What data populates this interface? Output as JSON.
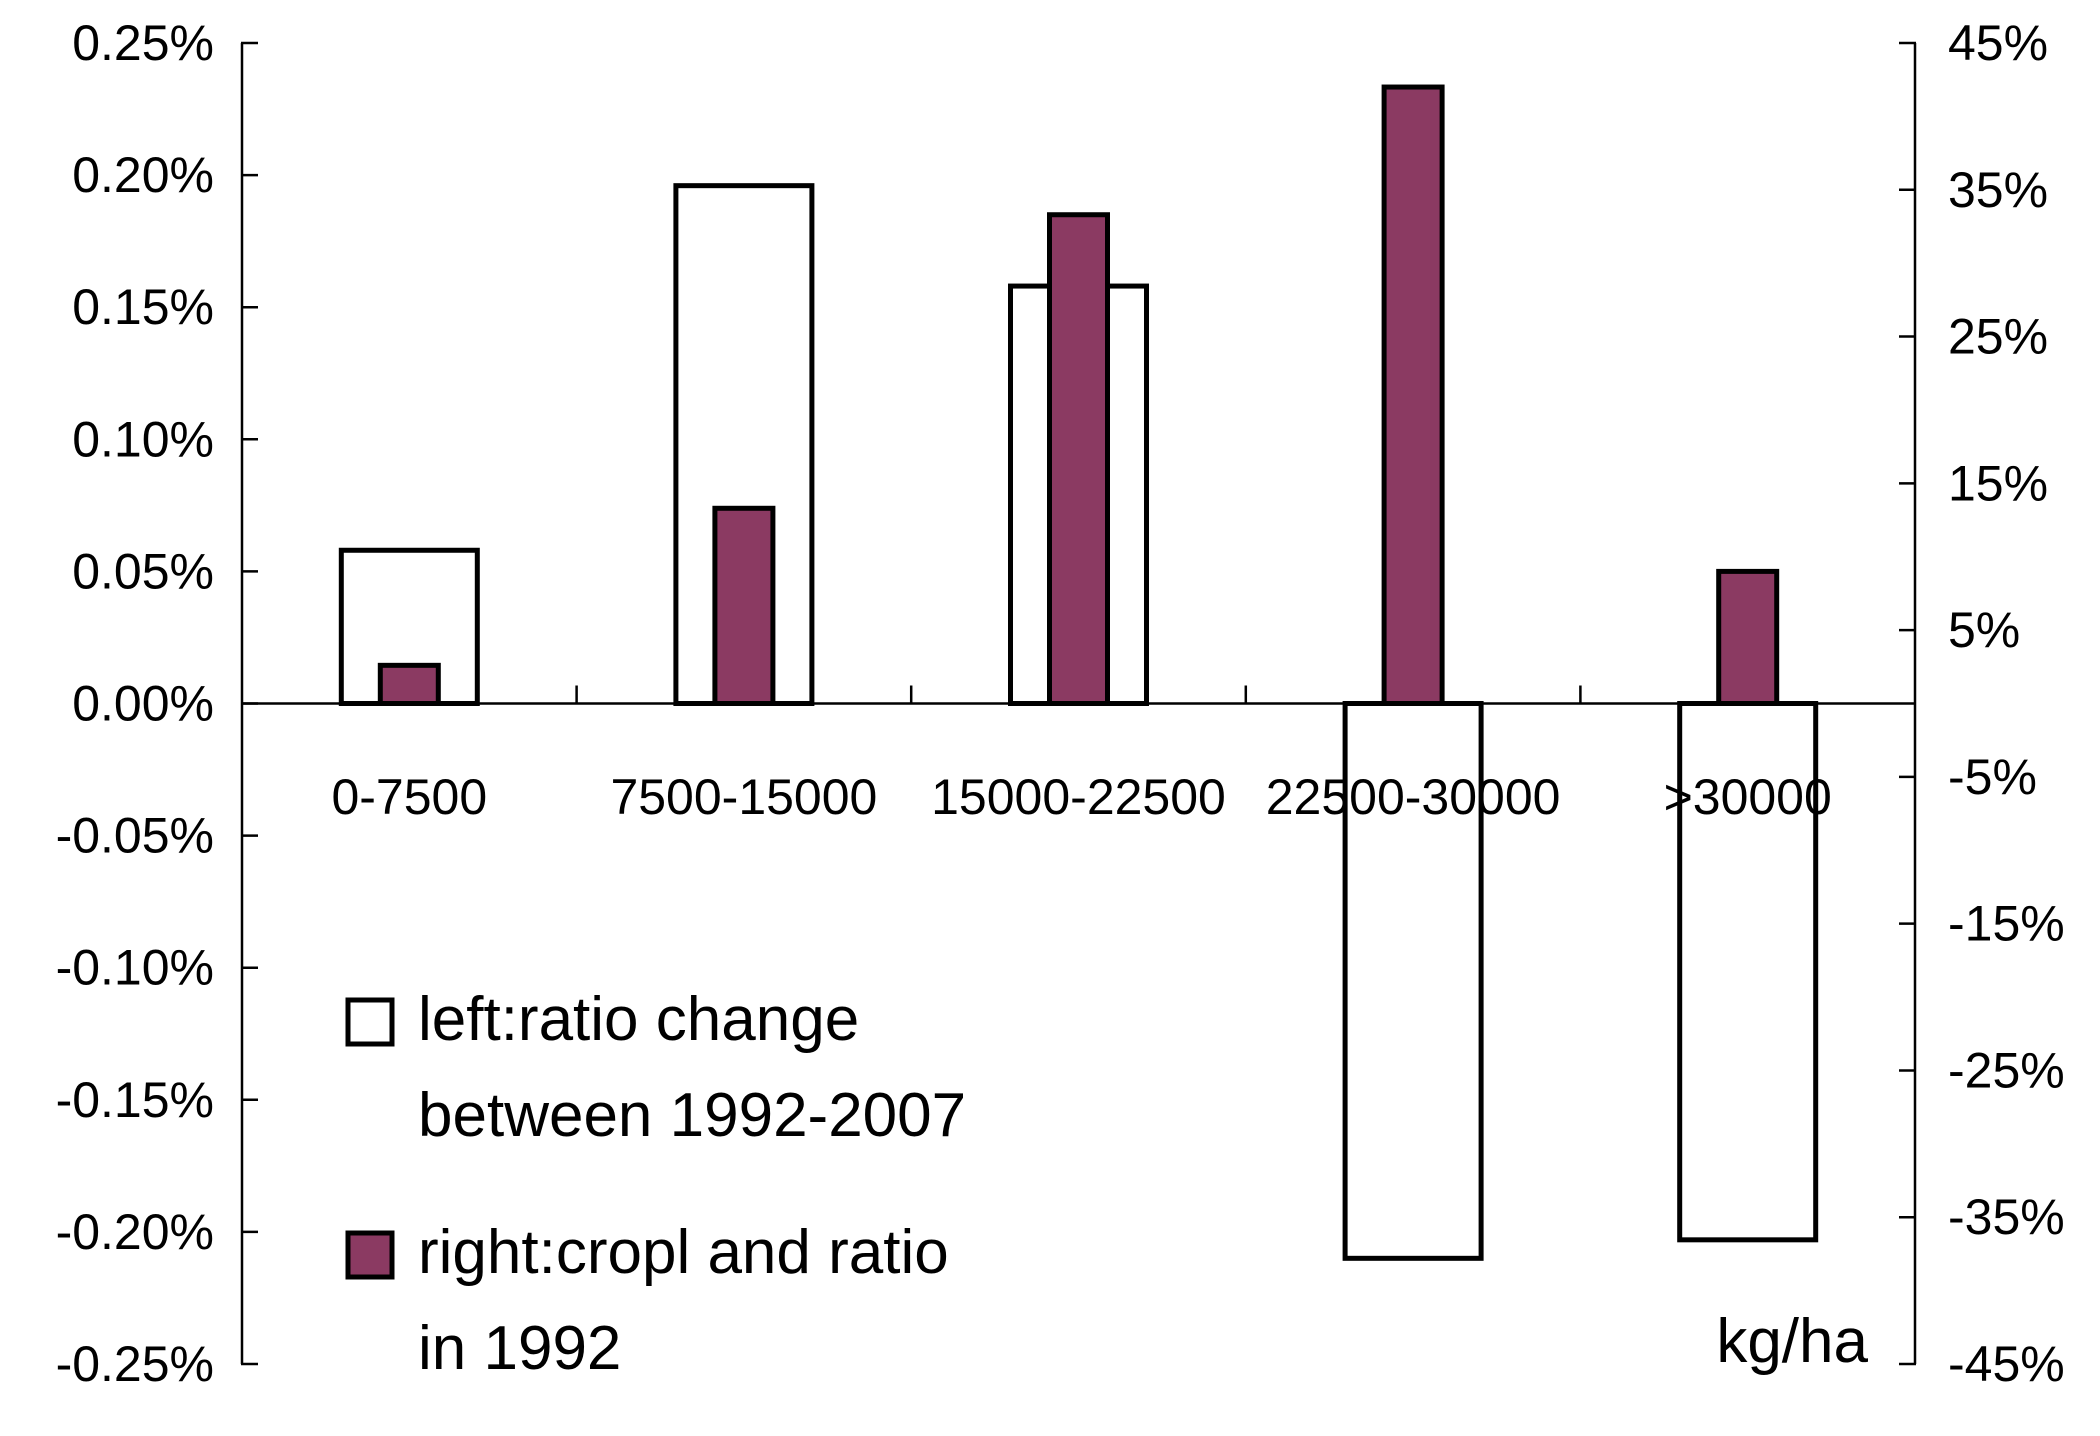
{
  "chart_data": {
    "type": "bar",
    "categories": [
      "0-7500",
      "7500-15000",
      "15000-22500",
      "22500-30000",
      ">30000"
    ],
    "x_unit_label": "kg/ha",
    "series": [
      {
        "name_lines": [
          "left:ratio change",
          "between 1992-2007"
        ],
        "axis": "left",
        "values": [
          0.058,
          0.196,
          0.158,
          -0.21,
          -0.203
        ],
        "color": "#ffffff"
      },
      {
        "name_lines": [
          "right:cropl and ratio",
          "in 1992"
        ],
        "axis": "right",
        "values": [
          2.6,
          13.3,
          33.3,
          42.0,
          9.0
        ],
        "color": "#8b3a62"
      }
    ],
    "left_axis": {
      "ylim": [
        -0.25,
        0.25
      ],
      "ticks": [
        0.25,
        0.2,
        0.15,
        0.1,
        0.05,
        0.0,
        -0.05,
        -0.1,
        -0.15,
        -0.2,
        -0.25
      ],
      "tick_labels": [
        "0.25%",
        "0.20%",
        "0.15%",
        "0.10%",
        "0.05%",
        "0.00%",
        "-0.05%",
        "-0.10%",
        "-0.15%",
        "-0.20%",
        "-0.25%"
      ]
    },
    "right_axis": {
      "ylim": [
        -45,
        45
      ],
      "ticks": [
        45,
        35,
        25,
        15,
        5,
        -5,
        -15,
        -25,
        -35,
        -45
      ],
      "tick_labels": [
        "45%",
        "35%",
        "25%",
        "15%",
        "5%",
        "-5%",
        "-15%",
        "-25%",
        "-35%",
        "-45%"
      ]
    },
    "grid": false,
    "legend_position": "bottom-left",
    "colors": {
      "outline": "#000000",
      "purple": "#8b3a62",
      "white": "#ffffff"
    }
  }
}
